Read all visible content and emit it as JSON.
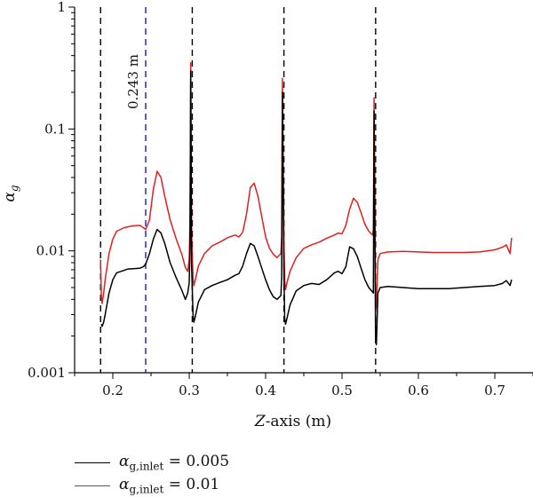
{
  "chart_data": {
    "type": "line",
    "xlabel": "Z-axis (m)",
    "ylabel": "α_g",
    "xlim": [
      0.15,
      0.75
    ],
    "ylim": [
      0.001,
      1
    ],
    "y_scale": "log",
    "x_ticks": [
      0.2,
      0.3,
      0.4,
      0.5,
      0.6,
      0.7
    ],
    "x_tick_labels": [
      "0.2",
      "0.3",
      "0.4",
      "0.5",
      "0.6",
      "0.7"
    ],
    "y_ticks": [
      0.001,
      0.01,
      0.1,
      1
    ],
    "y_tick_labels": [
      "0.001",
      "0.01",
      "0.1",
      "1"
    ],
    "grid": false,
    "legend_position": "bottom-left, below plot",
    "vlines": [
      {
        "x": 0.184,
        "color": "#000000",
        "style": "dashed"
      },
      {
        "x": 0.243,
        "color": "#1a1aa8",
        "style": "dashed",
        "label": "0.243 m"
      },
      {
        "x": 0.304,
        "color": "#000000",
        "style": "dashed"
      },
      {
        "x": 0.424,
        "color": "#000000",
        "style": "dashed"
      },
      {
        "x": 0.544,
        "color": "#000000",
        "style": "dashed"
      }
    ],
    "series": [
      {
        "name": "α_g,inlet = 0.005",
        "color": "#000000",
        "x": [
          0.185,
          0.186,
          0.188,
          0.19,
          0.195,
          0.2,
          0.205,
          0.22,
          0.235,
          0.24,
          0.243,
          0.248,
          0.253,
          0.258,
          0.263,
          0.268,
          0.275,
          0.283,
          0.29,
          0.295,
          0.298,
          0.3,
          0.301,
          0.302,
          0.303,
          0.305,
          0.306,
          0.308,
          0.312,
          0.32,
          0.33,
          0.34,
          0.35,
          0.36,
          0.365,
          0.37,
          0.375,
          0.38,
          0.385,
          0.39,
          0.395,
          0.4,
          0.405,
          0.41,
          0.415,
          0.42,
          0.421,
          0.422,
          0.424,
          0.425,
          0.426,
          0.428,
          0.432,
          0.44,
          0.45,
          0.46,
          0.47,
          0.48,
          0.49,
          0.495,
          0.5,
          0.505,
          0.51,
          0.515,
          0.52,
          0.525,
          0.53,
          0.535,
          0.54,
          0.541,
          0.542,
          0.544,
          0.545,
          0.547,
          0.55,
          0.56,
          0.58,
          0.6,
          0.62,
          0.64,
          0.66,
          0.68,
          0.7,
          0.71,
          0.715,
          0.72,
          0.722
        ],
        "y": [
          0.0025,
          0.0024,
          0.0026,
          0.003,
          0.0045,
          0.0058,
          0.0066,
          0.0071,
          0.0072,
          0.0074,
          0.0078,
          0.0095,
          0.0125,
          0.015,
          0.014,
          0.0115,
          0.008,
          0.006,
          0.0048,
          0.004,
          0.0045,
          0.0055,
          0.011,
          0.3,
          0.008,
          0.003,
          0.0026,
          0.0029,
          0.0038,
          0.0048,
          0.0052,
          0.0055,
          0.0058,
          0.0063,
          0.0065,
          0.0075,
          0.0095,
          0.0115,
          0.011,
          0.009,
          0.0072,
          0.0058,
          0.0048,
          0.0042,
          0.004,
          0.0043,
          0.006,
          0.2,
          0.007,
          0.0028,
          0.0025,
          0.0028,
          0.0036,
          0.0047,
          0.0052,
          0.0054,
          0.0053,
          0.0058,
          0.0066,
          0.0068,
          0.0065,
          0.0074,
          0.0108,
          0.0104,
          0.009,
          0.0072,
          0.0058,
          0.005,
          0.0046,
          0.0045,
          0.14,
          0.0018,
          0.0017,
          0.0045,
          0.005,
          0.0051,
          0.005,
          0.0049,
          0.0049,
          0.0049,
          0.005,
          0.0051,
          0.0052,
          0.0054,
          0.0057,
          0.0052,
          0.0058
        ]
      },
      {
        "name": "α_g,inlet = 0.01",
        "color": "#e02020",
        "x": [
          0.184,
          0.185,
          0.186,
          0.188,
          0.19,
          0.195,
          0.2,
          0.205,
          0.215,
          0.225,
          0.235,
          0.24,
          0.243,
          0.248,
          0.253,
          0.258,
          0.263,
          0.268,
          0.275,
          0.283,
          0.29,
          0.295,
          0.298,
          0.3,
          0.301,
          0.302,
          0.303,
          0.305,
          0.306,
          0.308,
          0.312,
          0.32,
          0.33,
          0.34,
          0.35,
          0.36,
          0.365,
          0.37,
          0.375,
          0.38,
          0.385,
          0.39,
          0.395,
          0.4,
          0.405,
          0.41,
          0.415,
          0.42,
          0.421,
          0.422,
          0.424,
          0.425,
          0.426,
          0.428,
          0.432,
          0.44,
          0.45,
          0.46,
          0.47,
          0.48,
          0.49,
          0.495,
          0.5,
          0.505,
          0.51,
          0.515,
          0.52,
          0.525,
          0.53,
          0.535,
          0.54,
          0.541,
          0.542,
          0.544,
          0.545,
          0.547,
          0.55,
          0.56,
          0.58,
          0.6,
          0.62,
          0.64,
          0.66,
          0.68,
          0.7,
          0.71,
          0.715,
          0.72,
          0.722
        ],
        "y": [
          0.0085,
          0.0042,
          0.0037,
          0.0045,
          0.0058,
          0.0095,
          0.0125,
          0.0145,
          0.0155,
          0.016,
          0.0162,
          0.0155,
          0.015,
          0.018,
          0.032,
          0.045,
          0.04,
          0.028,
          0.018,
          0.0125,
          0.0095,
          0.0073,
          0.0068,
          0.0085,
          0.018,
          0.35,
          0.014,
          0.006,
          0.0052,
          0.0058,
          0.0075,
          0.0095,
          0.011,
          0.0118,
          0.0128,
          0.0135,
          0.013,
          0.0142,
          0.02,
          0.033,
          0.036,
          0.028,
          0.019,
          0.013,
          0.0105,
          0.0094,
          0.0088,
          0.0095,
          0.013,
          0.26,
          0.012,
          0.0058,
          0.0048,
          0.0055,
          0.0068,
          0.0088,
          0.0105,
          0.0112,
          0.0118,
          0.0127,
          0.0135,
          0.014,
          0.0138,
          0.0162,
          0.022,
          0.027,
          0.025,
          0.0205,
          0.0165,
          0.0145,
          0.0135,
          0.015,
          0.18,
          0.0036,
          0.0034,
          0.0085,
          0.0095,
          0.0098,
          0.0099,
          0.0098,
          0.0097,
          0.0097,
          0.0097,
          0.0098,
          0.0102,
          0.0107,
          0.0112,
          0.0095,
          0.0128
        ]
      }
    ]
  },
  "legend": {
    "items": [
      {
        "symbol": "α",
        "sub": "g,inlet",
        "value": " = 0.005",
        "color": "#000000"
      },
      {
        "symbol": "α",
        "sub": "g,inlet",
        "value": " = 0.01",
        "color": "#e02020"
      }
    ]
  },
  "axis_labels": {
    "x": "Z-axis (m)",
    "y_symbol": "α",
    "y_sub": "g"
  }
}
